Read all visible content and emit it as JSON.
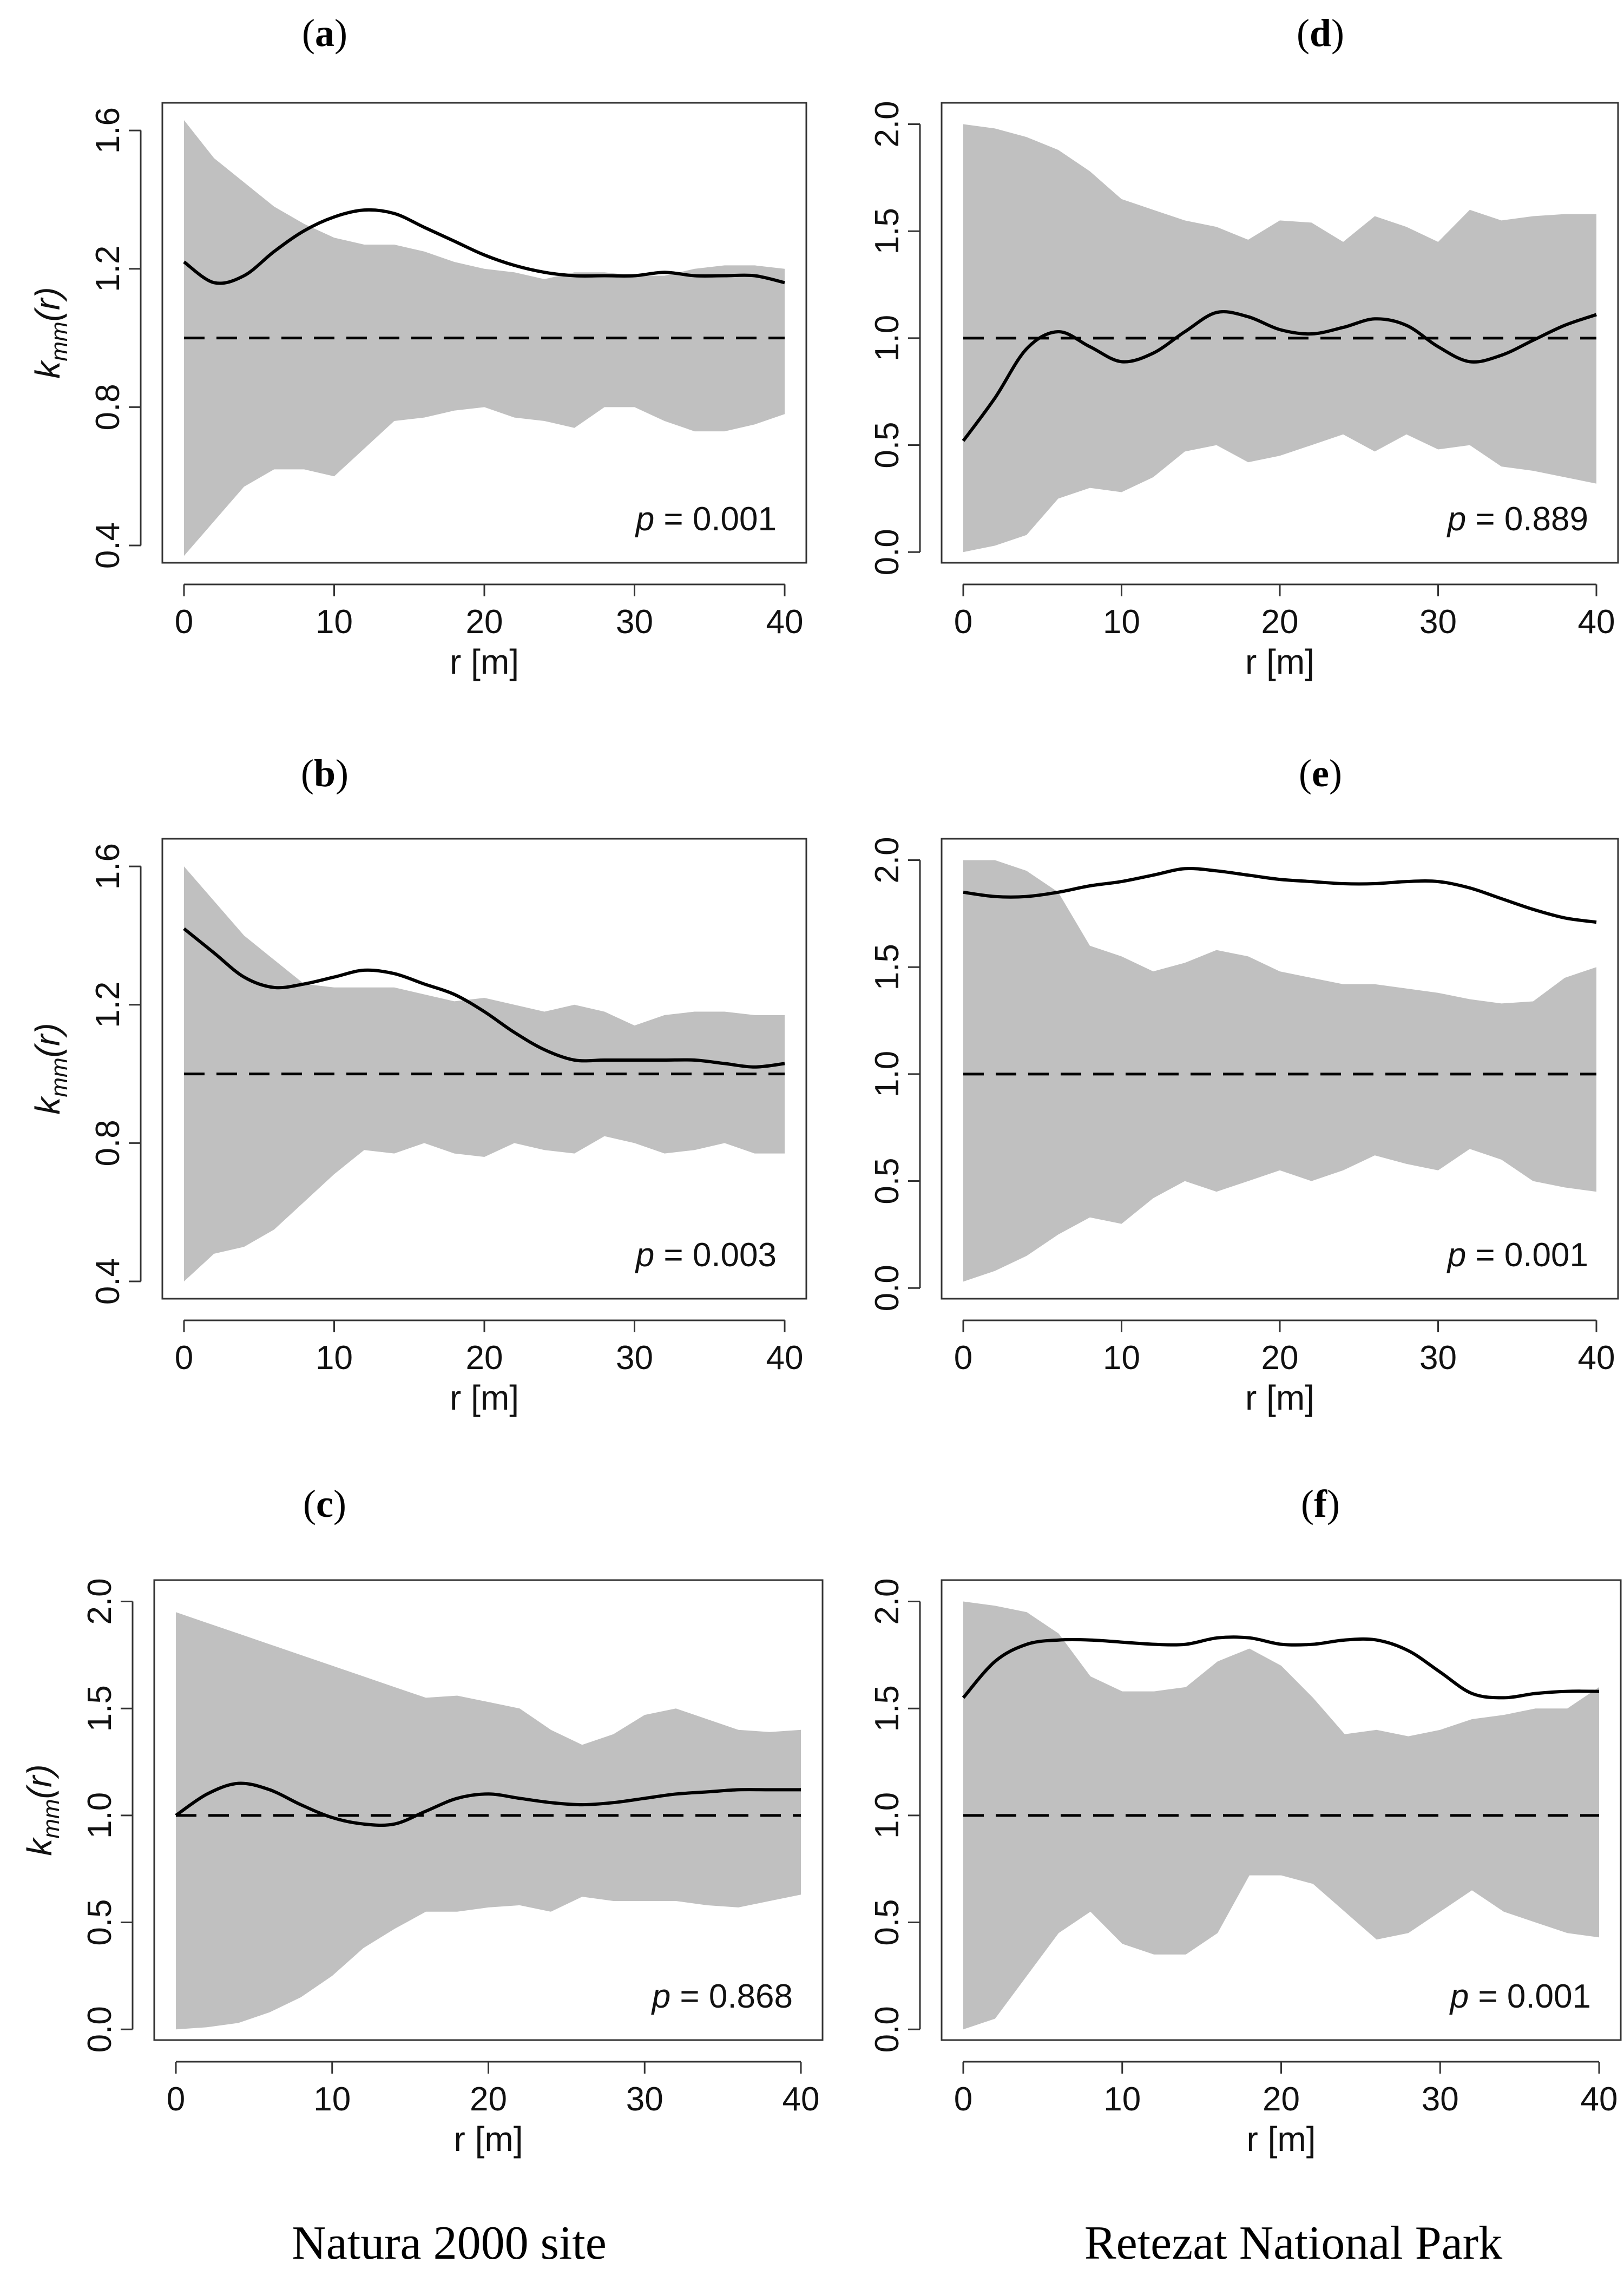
{
  "captions": {
    "left": "Natura 2000 site",
    "right": "Retezat National Park"
  },
  "chart_data": [
    {
      "panel": "a",
      "type": "line",
      "xlabel": "r [m]",
      "ylabel_main": "k",
      "ylabel_sub": "mm",
      "ylabel_arg": "(r)",
      "xlim": [
        0,
        40
      ],
      "ylim": [
        0.35,
        1.68
      ],
      "xticks": [
        0,
        10,
        20,
        30,
        40
      ],
      "yticks": [
        0.4,
        0.8,
        1.2,
        1.6
      ],
      "ytick_labels": [
        "0.4",
        "0.8",
        "1.2",
        "1.6"
      ],
      "p_value": "p = 0.001",
      "reference": 1.0,
      "x": [
        0,
        2,
        4,
        6,
        8,
        10,
        12,
        14,
        16,
        18,
        20,
        22,
        24,
        26,
        28,
        30,
        32,
        34,
        36,
        38,
        40
      ],
      "observed": [
        1.22,
        1.16,
        1.18,
        1.25,
        1.31,
        1.35,
        1.37,
        1.36,
        1.32,
        1.28,
        1.24,
        1.21,
        1.19,
        1.18,
        1.18,
        1.18,
        1.19,
        1.18,
        1.18,
        1.18,
        1.16
      ],
      "envelope_upper": [
        1.63,
        1.52,
        1.45,
        1.38,
        1.33,
        1.29,
        1.27,
        1.27,
        1.25,
        1.22,
        1.2,
        1.19,
        1.17,
        1.19,
        1.19,
        1.18,
        1.18,
        1.2,
        1.21,
        1.21,
        1.2
      ],
      "envelope_lower": [
        0.37,
        0.47,
        0.57,
        0.62,
        0.62,
        0.6,
        0.68,
        0.76,
        0.77,
        0.79,
        0.8,
        0.77,
        0.76,
        0.74,
        0.8,
        0.8,
        0.76,
        0.73,
        0.73,
        0.75,
        0.78
      ]
    },
    {
      "panel": "b",
      "type": "line",
      "xlabel": "r [m]",
      "ylabel_main": "k",
      "ylabel_sub": "mm",
      "ylabel_arg": "(r)",
      "xlim": [
        0,
        40
      ],
      "ylim": [
        0.35,
        1.68
      ],
      "xticks": [
        0,
        10,
        20,
        30,
        40
      ],
      "yticks": [
        0.4,
        0.8,
        1.2,
        1.6
      ],
      "ytick_labels": [
        "0.4",
        "0.8",
        "1.2",
        "1.6"
      ],
      "p_value": "p = 0.003",
      "reference": 1.0,
      "x": [
        0,
        2,
        4,
        6,
        8,
        10,
        12,
        14,
        16,
        18,
        20,
        22,
        24,
        26,
        28,
        30,
        32,
        34,
        36,
        38,
        40
      ],
      "observed": [
        1.42,
        1.35,
        1.28,
        1.25,
        1.26,
        1.28,
        1.3,
        1.29,
        1.26,
        1.23,
        1.18,
        1.12,
        1.07,
        1.04,
        1.04,
        1.04,
        1.04,
        1.04,
        1.03,
        1.02,
        1.03
      ],
      "envelope_upper": [
        1.6,
        1.5,
        1.4,
        1.33,
        1.26,
        1.25,
        1.25,
        1.25,
        1.23,
        1.21,
        1.22,
        1.2,
        1.18,
        1.2,
        1.18,
        1.14,
        1.17,
        1.18,
        1.18,
        1.17,
        1.17
      ],
      "envelope_lower": [
        0.4,
        0.48,
        0.5,
        0.55,
        0.63,
        0.71,
        0.78,
        0.77,
        0.8,
        0.77,
        0.76,
        0.8,
        0.78,
        0.77,
        0.82,
        0.8,
        0.77,
        0.78,
        0.8,
        0.77,
        0.77
      ]
    },
    {
      "panel": "c",
      "type": "line",
      "xlabel": "r [m]",
      "ylabel_main": "k",
      "ylabel_sub": "mm",
      "ylabel_arg": "(r)",
      "xlim": [
        0,
        40
      ],
      "ylim": [
        -0.05,
        2.1
      ],
      "xticks": [
        0,
        10,
        20,
        30,
        40
      ],
      "yticks": [
        0,
        0.5,
        1,
        1.5,
        2
      ],
      "ytick_labels": [
        "0.0",
        "0.5",
        "1.0",
        "1.5",
        "2.0"
      ],
      "p_value": "p = 0.868",
      "reference": 1.0,
      "x": [
        0,
        2,
        4,
        6,
        8,
        10,
        12,
        14,
        16,
        18,
        20,
        22,
        24,
        26,
        28,
        30,
        32,
        34,
        36,
        38,
        40
      ],
      "observed": [
        1.0,
        1.1,
        1.15,
        1.12,
        1.05,
        0.99,
        0.96,
        0.96,
        1.02,
        1.08,
        1.1,
        1.08,
        1.06,
        1.05,
        1.06,
        1.08,
        1.1,
        1.11,
        1.12,
        1.12,
        1.12
      ],
      "envelope_upper": [
        1.95,
        1.9,
        1.85,
        1.8,
        1.75,
        1.7,
        1.65,
        1.6,
        1.55,
        1.56,
        1.53,
        1.5,
        1.4,
        1.33,
        1.38,
        1.47,
        1.5,
        1.45,
        1.4,
        1.39,
        1.4
      ],
      "envelope_lower": [
        0.0,
        0.01,
        0.03,
        0.08,
        0.15,
        0.25,
        0.38,
        0.47,
        0.55,
        0.55,
        0.57,
        0.58,
        0.55,
        0.62,
        0.6,
        0.6,
        0.6,
        0.58,
        0.57,
        0.6,
        0.63
      ]
    },
    {
      "panel": "d",
      "type": "line",
      "xlabel": "r [m]",
      "ylabel_main": "",
      "ylabel_sub": "",
      "ylabel_arg": "",
      "xlim": [
        0,
        40
      ],
      "ylim": [
        -0.05,
        2.1
      ],
      "xticks": [
        0,
        10,
        20,
        30,
        40
      ],
      "yticks": [
        0,
        0.5,
        1,
        1.5,
        2
      ],
      "ytick_labels": [
        "0.0",
        "0.5",
        "1.0",
        "1.5",
        "2.0"
      ],
      "p_value": "p = 0.889",
      "reference": 1.0,
      "x": [
        0,
        2,
        4,
        6,
        8,
        10,
        12,
        14,
        16,
        18,
        20,
        22,
        24,
        26,
        28,
        30,
        32,
        34,
        36,
        38,
        40
      ],
      "observed": [
        0.52,
        0.72,
        0.95,
        1.03,
        0.96,
        0.89,
        0.93,
        1.03,
        1.12,
        1.1,
        1.04,
        1.02,
        1.05,
        1.09,
        1.06,
        0.96,
        0.89,
        0.92,
        0.99,
        1.06,
        1.11
      ],
      "envelope_upper": [
        2.0,
        1.98,
        1.94,
        1.88,
        1.78,
        1.65,
        1.6,
        1.55,
        1.52,
        1.46,
        1.55,
        1.54,
        1.45,
        1.57,
        1.52,
        1.45,
        1.6,
        1.55,
        1.57,
        1.58,
        1.58
      ],
      "envelope_lower": [
        0.0,
        0.03,
        0.08,
        0.25,
        0.3,
        0.28,
        0.35,
        0.47,
        0.5,
        0.42,
        0.45,
        0.5,
        0.55,
        0.47,
        0.55,
        0.48,
        0.5,
        0.4,
        0.38,
        0.35,
        0.32
      ]
    },
    {
      "panel": "e",
      "type": "line",
      "xlabel": "r [m]",
      "ylabel_main": "",
      "ylabel_sub": "",
      "ylabel_arg": "",
      "xlim": [
        0,
        40
      ],
      "ylim": [
        -0.05,
        2.1
      ],
      "xticks": [
        0,
        10,
        20,
        30,
        40
      ],
      "yticks": [
        0,
        0.5,
        1,
        1.5,
        2
      ],
      "ytick_labels": [
        "0.0",
        "0.5",
        "1.0",
        "1.5",
        "2.0"
      ],
      "p_value": "p = 0.001",
      "reference": 1.0,
      "x": [
        0,
        2,
        4,
        6,
        8,
        10,
        12,
        14,
        16,
        18,
        20,
        22,
        24,
        26,
        28,
        30,
        32,
        34,
        36,
        38,
        40
      ],
      "observed": [
        1.85,
        1.83,
        1.83,
        1.85,
        1.88,
        1.9,
        1.93,
        1.96,
        1.95,
        1.93,
        1.91,
        1.9,
        1.89,
        1.89,
        1.9,
        1.9,
        1.87,
        1.82,
        1.77,
        1.73,
        1.71
      ],
      "envelope_upper": [
        2.0,
        2.0,
        1.95,
        1.85,
        1.6,
        1.55,
        1.48,
        1.52,
        1.58,
        1.55,
        1.48,
        1.45,
        1.42,
        1.42,
        1.4,
        1.38,
        1.35,
        1.33,
        1.34,
        1.45,
        1.5
      ],
      "envelope_lower": [
        0.03,
        0.08,
        0.15,
        0.25,
        0.33,
        0.3,
        0.42,
        0.5,
        0.45,
        0.5,
        0.55,
        0.5,
        0.55,
        0.62,
        0.58,
        0.55,
        0.65,
        0.6,
        0.5,
        0.47,
        0.45
      ]
    },
    {
      "panel": "f",
      "type": "line",
      "xlabel": "r [m]",
      "ylabel_main": "",
      "ylabel_sub": "",
      "ylabel_arg": "",
      "xlim": [
        0,
        40
      ],
      "ylim": [
        -0.05,
        2.1
      ],
      "xticks": [
        0,
        10,
        20,
        30,
        40
      ],
      "yticks": [
        0,
        0.5,
        1,
        1.5,
        2
      ],
      "ytick_labels": [
        "0.0",
        "0.5",
        "1.0",
        "1.5",
        "2.0"
      ],
      "p_value": "p = 0.001",
      "reference": 1.0,
      "x": [
        0,
        2,
        4,
        6,
        8,
        10,
        12,
        14,
        16,
        18,
        20,
        22,
        24,
        26,
        28,
        30,
        32,
        34,
        36,
        38,
        40
      ],
      "observed": [
        1.55,
        1.72,
        1.8,
        1.82,
        1.82,
        1.81,
        1.8,
        1.8,
        1.83,
        1.83,
        1.8,
        1.8,
        1.82,
        1.82,
        1.77,
        1.67,
        1.57,
        1.55,
        1.57,
        1.58,
        1.58
      ],
      "envelope_upper": [
        2.0,
        1.98,
        1.95,
        1.85,
        1.65,
        1.58,
        1.58,
        1.6,
        1.72,
        1.78,
        1.7,
        1.55,
        1.38,
        1.4,
        1.37,
        1.4,
        1.45,
        1.47,
        1.5,
        1.5,
        1.6
      ],
      "envelope_lower": [
        0.0,
        0.05,
        0.25,
        0.45,
        0.55,
        0.4,
        0.35,
        0.35,
        0.45,
        0.72,
        0.72,
        0.68,
        0.55,
        0.42,
        0.45,
        0.55,
        0.65,
        0.55,
        0.5,
        0.45,
        0.43
      ]
    }
  ],
  "colors": {
    "envelope": "#c0c0c0",
    "line": "#000000",
    "frame": "#333333"
  }
}
